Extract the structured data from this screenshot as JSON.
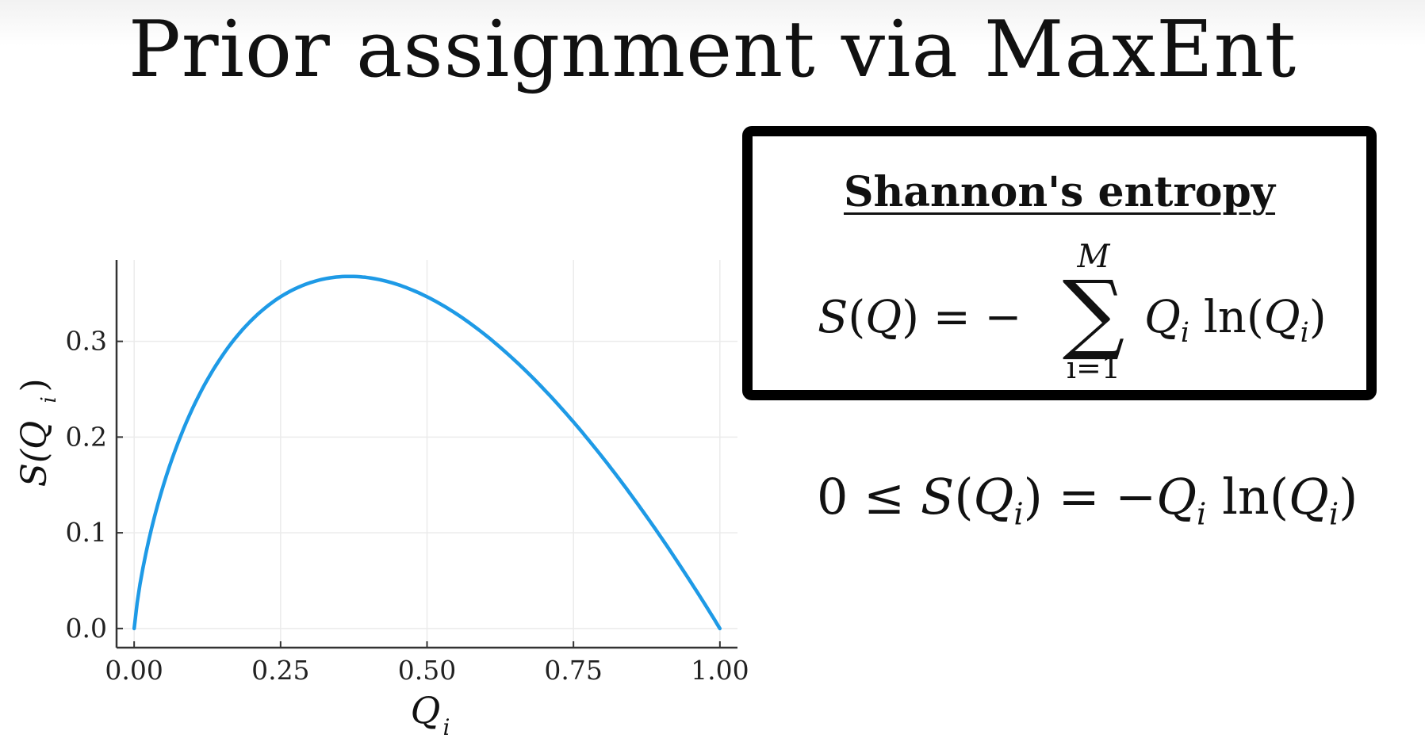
{
  "slide": {
    "title": "Prior assignment via MaxEnt"
  },
  "colors": {
    "curve": "#1e9ae6",
    "axis": "#333333",
    "grid": "#ebebeb",
    "box_border": "#000000"
  },
  "formula_box": {
    "heading": "Shannon's entropy",
    "lhs": "S",
    "lhs_arg": "Q",
    "eq_sign": "=",
    "minus": "−",
    "sum_upper": "M",
    "sum_symbol": "∑",
    "sum_lower": "i=1",
    "term_var": "Q",
    "term_sub": "i",
    "log_text": "ln",
    "log_var": "Q",
    "log_sub": "i"
  },
  "bound_equation": {
    "zero": "0",
    "leq": "≤",
    "lhs": "S",
    "lhs_var": "Q",
    "lhs_sub": "i",
    "eq_sign": "=",
    "rhs_minus": "−",
    "rhs_var": "Q",
    "rhs_sub": "i",
    "log_text": "ln",
    "log_var": "Q",
    "log_sub": "i"
  },
  "chart_data": {
    "type": "line",
    "title": "",
    "xlabel": "Q",
    "xlabel_sub": "i",
    "ylabel": "S(Q",
    "ylabel_sub": "i",
    "ylabel_close": ")",
    "xlim": [
      -0.03,
      1.03
    ],
    "ylim": [
      -0.02,
      0.385
    ],
    "x_ticks": [
      0.0,
      0.25,
      0.5,
      0.75,
      1.0
    ],
    "x_tick_labels": [
      "0.00",
      "0.25",
      "0.50",
      "0.75",
      "1.00"
    ],
    "y_ticks": [
      0.0,
      0.1,
      0.2,
      0.3
    ],
    "y_tick_labels": [
      "0.0",
      "0.1",
      "0.2",
      "0.3"
    ],
    "grid": true,
    "series": [
      {
        "x": [
          0.0,
          0.01,
          0.03,
          0.05,
          0.08,
          0.1,
          0.15,
          0.2,
          0.25,
          0.3,
          0.35,
          0.3679,
          0.4,
          0.45,
          0.5,
          0.55,
          0.6,
          0.65,
          0.7,
          0.75,
          0.8,
          0.85,
          0.9,
          0.95,
          1.0
        ],
        "y": [
          0.0,
          0.046,
          0.105,
          0.15,
          0.202,
          0.23,
          0.285,
          0.322,
          0.347,
          0.361,
          0.367,
          0.368,
          0.367,
          0.359,
          0.347,
          0.329,
          0.306,
          0.28,
          0.25,
          0.216,
          0.179,
          0.138,
          0.095,
          0.049,
          0.0
        ]
      }
    ]
  }
}
